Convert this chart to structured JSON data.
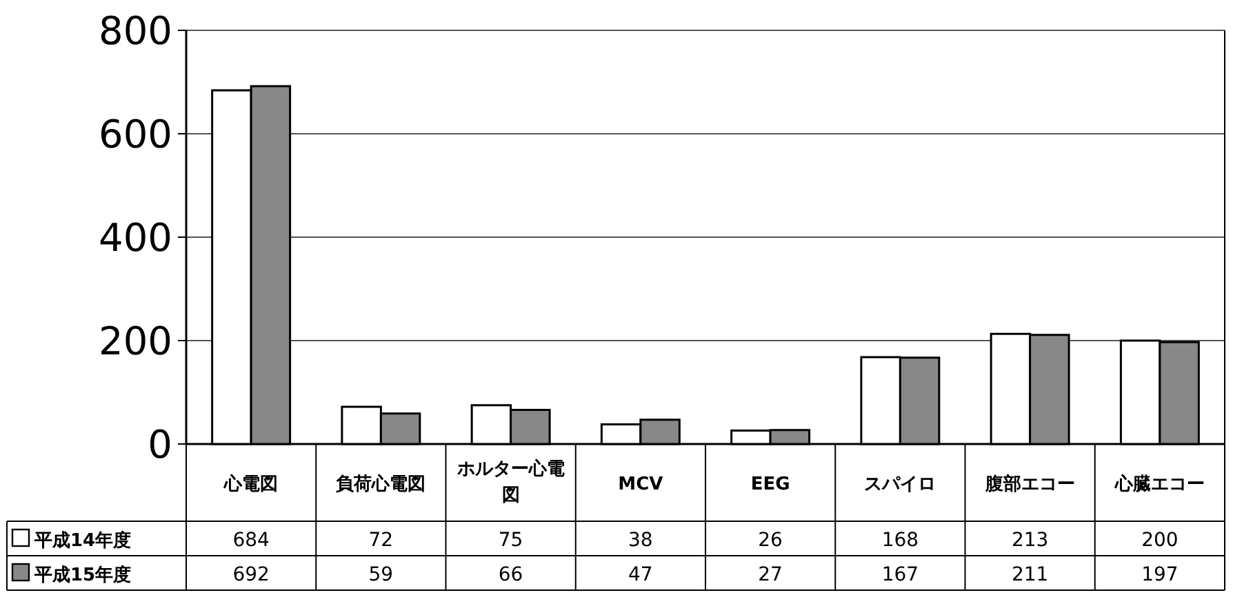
{
  "chart_data": {
    "type": "bar",
    "categories": [
      "心電図",
      "負荷心電図",
      "ホルター心電図",
      "MCV",
      "EEG",
      "スパイロ",
      "腹部エコー",
      "心臓エコー"
    ],
    "series": [
      {
        "name": "平成14年度",
        "color": "#ffffff",
        "values": [
          684,
          72,
          75,
          38,
          26,
          168,
          213,
          200
        ]
      },
      {
        "name": "平成15年度",
        "color": "#888888",
        "values": [
          692,
          59,
          66,
          47,
          27,
          167,
          211,
          197
        ]
      }
    ],
    "ylim": [
      0,
      800
    ],
    "yticks": [
      0,
      200,
      400,
      600,
      800
    ],
    "grid": "y",
    "legend": "bottom left",
    "data_labels": true
  }
}
